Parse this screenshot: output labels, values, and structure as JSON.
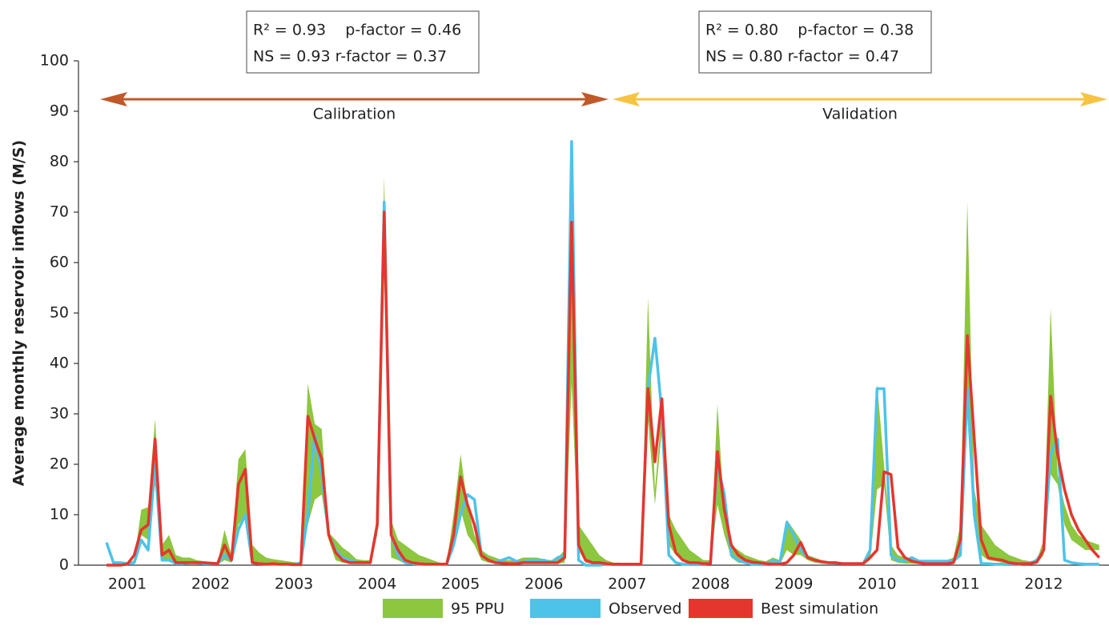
{
  "chart_data": {
    "type": "line",
    "y_label": "Average monthly reservoir inflows (M/S)",
    "ylim": [
      0,
      100
    ],
    "yticks": [
      0,
      10,
      20,
      30,
      40,
      50,
      60,
      70,
      80,
      90,
      100
    ],
    "categories": [
      null,
      null,
      null,
      "2001",
      null,
      null,
      null,
      null,
      null,
      null,
      null,
      null,
      null,
      null,
      null,
      "2002",
      null,
      null,
      null,
      null,
      null,
      null,
      null,
      null,
      null,
      null,
      null,
      "2003",
      null,
      null,
      null,
      null,
      null,
      null,
      null,
      null,
      null,
      null,
      null,
      "2004",
      null,
      null,
      null,
      null,
      null,
      null,
      null,
      null,
      null,
      null,
      null,
      "2005",
      null,
      null,
      null,
      null,
      null,
      null,
      null,
      null,
      null,
      null,
      null,
      "2006",
      null,
      null,
      null,
      null,
      null,
      null,
      null,
      null,
      null,
      null,
      null,
      "2007",
      null,
      null,
      null,
      null,
      null,
      null,
      null,
      null,
      null,
      null,
      null,
      "2008",
      null,
      null,
      null,
      null,
      null,
      null,
      null,
      null,
      null,
      null,
      null,
      "2009",
      null,
      null,
      null,
      null,
      null,
      null,
      null,
      null,
      null,
      null,
      null,
      "2010",
      null,
      null,
      null,
      null,
      null,
      null,
      null,
      null,
      null,
      null,
      null,
      "2011",
      null,
      null,
      null,
      null,
      null,
      null,
      null,
      null,
      null,
      null,
      null,
      "2012",
      null,
      null,
      null,
      null,
      null,
      null,
      null,
      null
    ],
    "band": {
      "name": "95 PPU",
      "color": "#8dc63f",
      "upper": [
        0,
        0,
        0,
        0.3,
        1,
        11,
        11.5,
        29,
        4,
        6,
        2,
        1.5,
        1.5,
        1,
        0.8,
        0.6,
        0.5,
        7,
        2,
        21,
        23,
        4,
        2.5,
        1.5,
        1.2,
        1,
        0.8,
        0.6,
        0.5,
        36,
        28,
        27,
        6.5,
        5,
        3.5,
        2.5,
        1.2,
        1,
        1,
        10,
        77,
        9,
        5,
        4,
        3,
        2,
        1.5,
        1,
        0.5,
        0.5,
        10,
        22,
        12,
        6,
        3,
        2,
        1.5,
        1,
        1,
        1,
        1.5,
        1.5,
        1.5,
        1.2,
        1,
        1.5,
        3,
        75,
        8,
        6,
        4,
        2,
        1,
        0.5,
        0.5,
        0.3,
        0.3,
        0.3,
        53,
        15,
        31,
        10,
        7,
        5,
        3,
        2,
        1,
        1,
        32,
        10,
        4,
        3,
        2,
        1.5,
        1,
        0.8,
        1.5,
        1,
        9,
        7,
        5,
        2,
        1.5,
        1,
        0.8,
        0.6,
        0.5,
        0.5,
        0.6,
        0.6,
        3,
        36,
        20,
        4,
        2,
        1.5,
        1.5,
        1,
        1,
        1,
        1,
        1,
        1.5,
        8,
        72,
        15,
        8,
        6,
        4,
        3,
        2,
        1.5,
        1,
        0.8,
        1,
        5,
        51,
        18,
        12,
        8,
        6,
        5,
        4.5,
        4
      ],
      "lower": [
        0,
        0,
        0,
        0,
        0.5,
        6,
        5,
        16,
        1,
        1,
        0.5,
        0.3,
        0.3,
        0.2,
        0.2,
        0.1,
        0.1,
        1,
        0.5,
        8,
        10,
        0.5,
        0.2,
        0.1,
        0.1,
        0.1,
        0.1,
        0.1,
        0.1,
        8,
        13,
        14,
        5,
        1,
        0.5,
        0.3,
        0.3,
        0.3,
        0.3,
        6,
        66,
        1.5,
        1,
        0.3,
        0.2,
        0.1,
        0.1,
        0.1,
        0.1,
        0.1,
        3,
        11,
        6,
        4,
        1,
        0.5,
        0.3,
        0.2,
        0.2,
        0.2,
        0.3,
        0.3,
        0.3,
        0.3,
        0.3,
        0.3,
        0.5,
        36,
        3,
        0.5,
        0.3,
        0.2,
        0.1,
        0.1,
        0.1,
        0.1,
        0.1,
        0.1,
        29,
        12,
        27,
        4,
        2,
        1,
        0.1,
        0.1,
        0.1,
        0.2,
        12,
        6,
        1.5,
        0.5,
        0.3,
        0.2,
        0.1,
        0.1,
        0.1,
        0.1,
        3,
        2,
        2,
        1,
        0.5,
        0.3,
        0.2,
        0.2,
        0.1,
        0.1,
        0.2,
        0.2,
        1,
        15,
        16,
        1,
        0.5,
        0.3,
        0.3,
        0.2,
        0.2,
        0.2,
        0.2,
        0.2,
        0.3,
        2,
        30,
        8,
        2,
        1,
        0.8,
        0.5,
        0.3,
        0.2,
        0.1,
        0.1,
        0.3,
        2,
        18,
        16,
        8,
        5,
        4,
        3,
        3,
        3
      ]
    },
    "series": [
      {
        "name": "Observed",
        "color": "#4dc3ea",
        "values": [
          4.5,
          0.5,
          0.5,
          0.3,
          0.5,
          5,
          3,
          20,
          1,
          1,
          0.3,
          0.3,
          0.5,
          0.5,
          0.3,
          0.3,
          0.3,
          2,
          1,
          7,
          10,
          0.5,
          0.3,
          0.2,
          0.2,
          0.2,
          0.2,
          0.1,
          0.5,
          10,
          26,
          18,
          6,
          3,
          1.5,
          1,
          0.5,
          0.5,
          0.5,
          8,
          72,
          6,
          2,
          0.5,
          0.3,
          0.2,
          0.2,
          0.2,
          0.2,
          0.2,
          4,
          10,
          14,
          13,
          2,
          1,
          0.5,
          1,
          1.5,
          0.8,
          0.5,
          1,
          1,
          1,
          0.5,
          1.5,
          2,
          84,
          1,
          0,
          0,
          0,
          0.2,
          0.1,
          0.1,
          0.1,
          0.1,
          0.1,
          35,
          45,
          30,
          2,
          0.5,
          0.2,
          0.1,
          0.1,
          0.1,
          0.5,
          20,
          14,
          2,
          1,
          0.5,
          0.2,
          0.1,
          0.1,
          1,
          0.5,
          8.5,
          6,
          3,
          1.5,
          1,
          0.6,
          0.5,
          0.4,
          0.3,
          0.3,
          0.3,
          0.3,
          3,
          35,
          35,
          2,
          1,
          0.8,
          1.5,
          0.8,
          0.8,
          0.8,
          0.8,
          0.8,
          0.8,
          2,
          35,
          10,
          0.3,
          0.3,
          0.2,
          0.2,
          0.1,
          0.1,
          0.3,
          0.3,
          1,
          3,
          22,
          25,
          1,
          0.5,
          0.3,
          0.2,
          0.2,
          0.2
        ]
      },
      {
        "name": "Best simulation",
        "color": "#e5362d",
        "values": [
          0,
          0,
          0,
          0.2,
          2,
          7,
          8,
          25,
          2,
          3,
          0.5,
          0.5,
          0.5,
          0.5,
          0.5,
          0.4,
          0.3,
          4,
          1,
          16,
          19,
          0.5,
          0.3,
          0.2,
          0.3,
          0.2,
          0.2,
          0.1,
          0.1,
          29.5,
          25,
          21,
          6,
          2.5,
          1,
          0.5,
          0.5,
          0.5,
          0.5,
          8,
          70,
          6,
          3,
          1,
          0.5,
          0.3,
          0.2,
          0.2,
          0.2,
          0.2,
          6,
          17.5,
          12,
          8,
          2,
          1,
          0.5,
          0.4,
          0.3,
          0.3,
          0.5,
          0.5,
          0.5,
          0.5,
          0.5,
          0.5,
          1.5,
          68,
          4,
          1,
          0.5,
          0.5,
          0.3,
          0.2,
          0.2,
          0.2,
          0.2,
          0.2,
          35,
          20.5,
          33,
          8,
          2.5,
          1,
          0.5,
          0.5,
          0.3,
          0.3,
          22.5,
          11,
          4,
          2,
          1,
          0.6,
          0.5,
          0.3,
          0.2,
          0.2,
          0.5,
          2,
          4.5,
          1.5,
          1,
          0.7,
          0.5,
          0.5,
          0.3,
          0.3,
          0.3,
          0.3,
          1.5,
          3,
          18.5,
          18,
          3.5,
          1.5,
          0.8,
          0.5,
          0.3,
          0.3,
          0.3,
          0.3,
          0.5,
          5,
          45.5,
          25,
          5,
          1.5,
          1.2,
          1,
          0.5,
          0.3,
          0.3,
          0.3,
          0.6,
          3,
          33.5,
          22,
          15,
          10,
          7,
          5,
          3,
          1.5
        ]
      }
    ],
    "periods": [
      {
        "label": "Calibration",
        "color": "#c0582a",
        "stats": [
          "R² = 0.93    p-factor = 0.46",
          "NS = 0.93 r-factor = 0.37"
        ]
      },
      {
        "label": "Validation",
        "color": "#f6c343",
        "stats": [
          "R² = 0.80    p-factor = 0.38",
          "NS = 0.80 r-factor = 0.47"
        ]
      }
    ]
  }
}
